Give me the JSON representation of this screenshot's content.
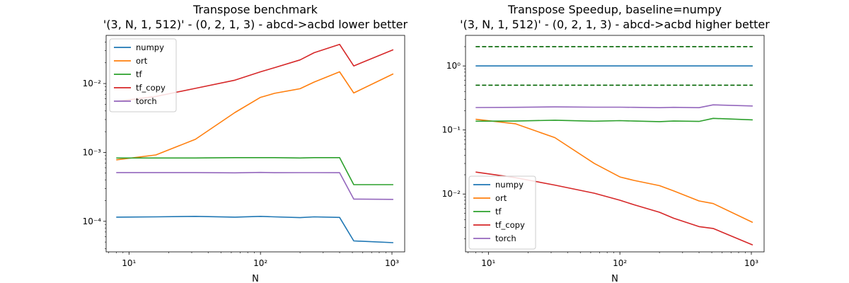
{
  "chart_data": [
    {
      "type": "line",
      "title_line1": "Transpose benchmark",
      "title_line2": "'(3, N, 1, 512)' - (0, 2, 1, 3) - abcd->acbd lower better",
      "xlabel": "N",
      "ylabel": "",
      "xscale": "log",
      "yscale": "log",
      "xlim": [
        6.7,
        1250
      ],
      "ylim": [
        3.6e-05,
        0.05
      ],
      "xticks": [
        {
          "value": 10,
          "label": "10¹"
        },
        {
          "value": 100,
          "label": "10²"
        },
        {
          "value": 1000,
          "label": "10³"
        }
      ],
      "yticks": [
        {
          "value": 0.0001,
          "label": "10⁻⁴"
        },
        {
          "value": 0.001,
          "label": "10⁻³"
        },
        {
          "value": 0.01,
          "label": "10⁻²"
        }
      ],
      "legend_position": "top-left",
      "x": [
        8,
        16,
        32,
        64,
        100,
        128,
        200,
        256,
        400,
        512,
        1024
      ],
      "series": [
        {
          "name": "numpy",
          "color": "#1f77b4",
          "values": [
            0.000115,
            0.000116,
            0.000118,
            0.000115,
            0.000118,
            0.000116,
            0.000113,
            0.000116,
            0.000114,
            5.2e-05,
            4.9e-05
          ]
        },
        {
          "name": "ort",
          "color": "#ff7f0e",
          "values": [
            0.00078,
            0.00092,
            0.00155,
            0.0038,
            0.0063,
            0.0072,
            0.0084,
            0.0105,
            0.0148,
            0.0073,
            0.0138
          ]
        },
        {
          "name": "tf",
          "color": "#2ca02c",
          "values": [
            0.00083,
            0.00083,
            0.00083,
            0.00084,
            0.00084,
            0.00084,
            0.00083,
            0.00084,
            0.00084,
            0.00034,
            0.00034
          ]
        },
        {
          "name": "tf_copy",
          "color": "#d62728",
          "values": [
            0.0055,
            0.0065,
            0.0085,
            0.0112,
            0.0148,
            0.017,
            0.022,
            0.028,
            0.037,
            0.018,
            0.031
          ]
        },
        {
          "name": "torch",
          "color": "#9467bd",
          "values": [
            0.00051,
            0.00051,
            0.00051,
            0.000505,
            0.000512,
            0.000508,
            0.000509,
            0.000509,
            0.000508,
            0.00021,
            0.000208
          ]
        }
      ],
      "reference_lines": []
    },
    {
      "type": "line",
      "title_line1": "Transpose Speedup, baseline=numpy",
      "title_line2": "'(3, N, 1, 512)' - (0, 2, 1, 3) - abcd->acbd higher better",
      "xlabel": "N",
      "ylabel": "",
      "xscale": "log",
      "yscale": "log",
      "xlim": [
        6.7,
        1250
      ],
      "ylim": [
        0.00125,
        3.0
      ],
      "xticks": [
        {
          "value": 10,
          "label": "10¹"
        },
        {
          "value": 100,
          "label": "10²"
        },
        {
          "value": 1000,
          "label": "10³"
        }
      ],
      "yticks": [
        {
          "value": 0.01,
          "label": "10⁻²"
        },
        {
          "value": 0.1,
          "label": "10⁻¹"
        },
        {
          "value": 1,
          "label": "10⁰"
        }
      ],
      "legend_position": "bottom-left",
      "x": [
        8,
        16,
        32,
        64,
        100,
        128,
        200,
        256,
        400,
        512,
        1024
      ],
      "series": [
        {
          "name": "numpy",
          "color": "#1f77b4",
          "values": [
            1,
            1,
            1,
            1,
            1,
            1,
            1,
            1,
            1,
            1,
            1
          ]
        },
        {
          "name": "ort",
          "color": "#ff7f0e",
          "values": [
            0.147,
            0.125,
            0.076,
            0.03,
            0.0185,
            0.0163,
            0.0135,
            0.0112,
            0.0078,
            0.0071,
            0.0036
          ]
        },
        {
          "name": "tf",
          "color": "#2ca02c",
          "values": [
            0.137,
            0.138,
            0.142,
            0.137,
            0.14,
            0.138,
            0.135,
            0.138,
            0.136,
            0.152,
            0.144
          ]
        },
        {
          "name": "tf_copy",
          "color": "#d62728",
          "values": [
            0.022,
            0.018,
            0.0138,
            0.0103,
            0.008,
            0.0068,
            0.0052,
            0.0042,
            0.0031,
            0.0029,
            0.0016
          ]
        },
        {
          "name": "torch",
          "color": "#9467bd",
          "values": [
            0.224,
            0.226,
            0.229,
            0.227,
            0.227,
            0.226,
            0.223,
            0.226,
            0.223,
            0.247,
            0.237
          ]
        }
      ],
      "reference_lines": [
        {
          "value": 2,
          "color": "#006400",
          "dash": "dashed"
        },
        {
          "value": 0.5,
          "color": "#006400",
          "dash": "dashed"
        }
      ]
    }
  ]
}
